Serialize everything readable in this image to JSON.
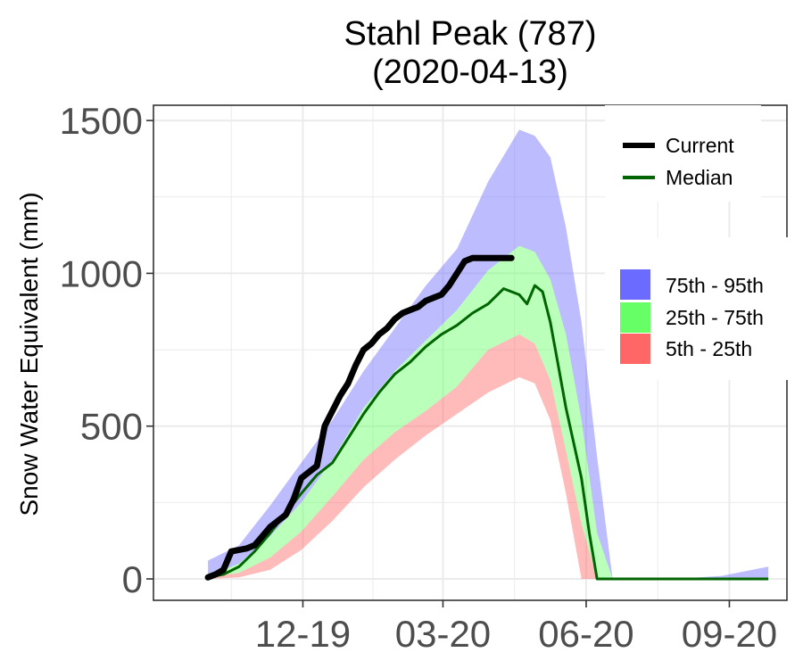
{
  "chart_data": {
    "type": "area",
    "title": "Stahl Peak (787)",
    "subtitle": "(2020-04-13)",
    "xlabel": "",
    "ylabel": "Snow Water Equivalent (mm)",
    "x_tick_labels": [
      "12-19",
      "03-20",
      "06-20",
      "09-20"
    ],
    "y_ticks": [
      0,
      500,
      1000,
      1500
    ],
    "ylim": [
      -70,
      1550
    ],
    "grid": true,
    "legend_position": "right",
    "colors": {
      "current": "#000000",
      "median": "#006400",
      "band_75_95": "#6b6bff",
      "band_25_75": "#66ff66",
      "band_5_25": "#ff6666"
    },
    "legend": {
      "lines": [
        {
          "key": "current",
          "label": "Current"
        },
        {
          "key": "median",
          "label": "Median"
        }
      ],
      "bands": [
        {
          "key": "band_75_95",
          "label": "75th - 95th"
        },
        {
          "key": "band_25_75",
          "label": "25th - 75th"
        },
        {
          "key": "band_5_25",
          "label": "5th - 25th"
        }
      ]
    },
    "x_unit": "days from Oct 1",
    "percentiles": {
      "x": [
        0,
        20,
        40,
        60,
        80,
        100,
        120,
        140,
        160,
        180,
        200,
        210,
        220,
        230,
        240,
        250,
        260,
        280,
        300,
        330,
        360
      ],
      "p5": [
        0,
        5,
        30,
        95,
        190,
        300,
        390,
        470,
        540,
        610,
        660,
        640,
        520,
        280,
        0,
        0,
        0,
        0,
        0,
        0,
        0
      ],
      "p25": [
        5,
        20,
        70,
        155,
        270,
        390,
        480,
        550,
        630,
        750,
        800,
        770,
        650,
        420,
        180,
        0,
        0,
        0,
        0,
        0,
        0
      ],
      "p75": [
        10,
        50,
        140,
        250,
        390,
        560,
        680,
        780,
        880,
        1010,
        1090,
        1070,
        980,
        800,
        520,
        150,
        0,
        0,
        0,
        0,
        0
      ],
      "p95": [
        60,
        110,
        240,
        380,
        520,
        680,
        820,
        960,
        1080,
        1300,
        1470,
        1450,
        1380,
        1150,
        840,
        400,
        0,
        0,
        0,
        10,
        40
      ]
    },
    "median": {
      "x": [
        0,
        10,
        20,
        30,
        40,
        50,
        60,
        70,
        80,
        90,
        100,
        110,
        120,
        130,
        140,
        150,
        160,
        170,
        180,
        190,
        200,
        205,
        210,
        215,
        220,
        225,
        230,
        240,
        245,
        250,
        360
      ],
      "y": [
        5,
        15,
        40,
        90,
        150,
        215,
        280,
        340,
        380,
        460,
        540,
        610,
        670,
        710,
        760,
        800,
        830,
        870,
        900,
        950,
        930,
        900,
        960,
        940,
        840,
        700,
        560,
        330,
        150,
        0,
        0
      ]
    },
    "current": {
      "x": [
        0,
        5,
        10,
        15,
        20,
        25,
        30,
        35,
        40,
        45,
        50,
        55,
        60,
        65,
        70,
        75,
        80,
        85,
        90,
        95,
        100,
        105,
        110,
        115,
        120,
        125,
        130,
        135,
        140,
        145,
        150,
        155,
        160,
        165,
        170,
        175,
        180,
        185,
        190,
        195
      ],
      "y": [
        5,
        15,
        30,
        90,
        95,
        100,
        110,
        140,
        170,
        190,
        210,
        260,
        330,
        350,
        370,
        500,
        550,
        600,
        640,
        700,
        750,
        770,
        800,
        820,
        850,
        870,
        880,
        890,
        910,
        920,
        930,
        960,
        1000,
        1040,
        1050,
        1050,
        1050,
        1050,
        1050,
        1050
      ]
    }
  }
}
